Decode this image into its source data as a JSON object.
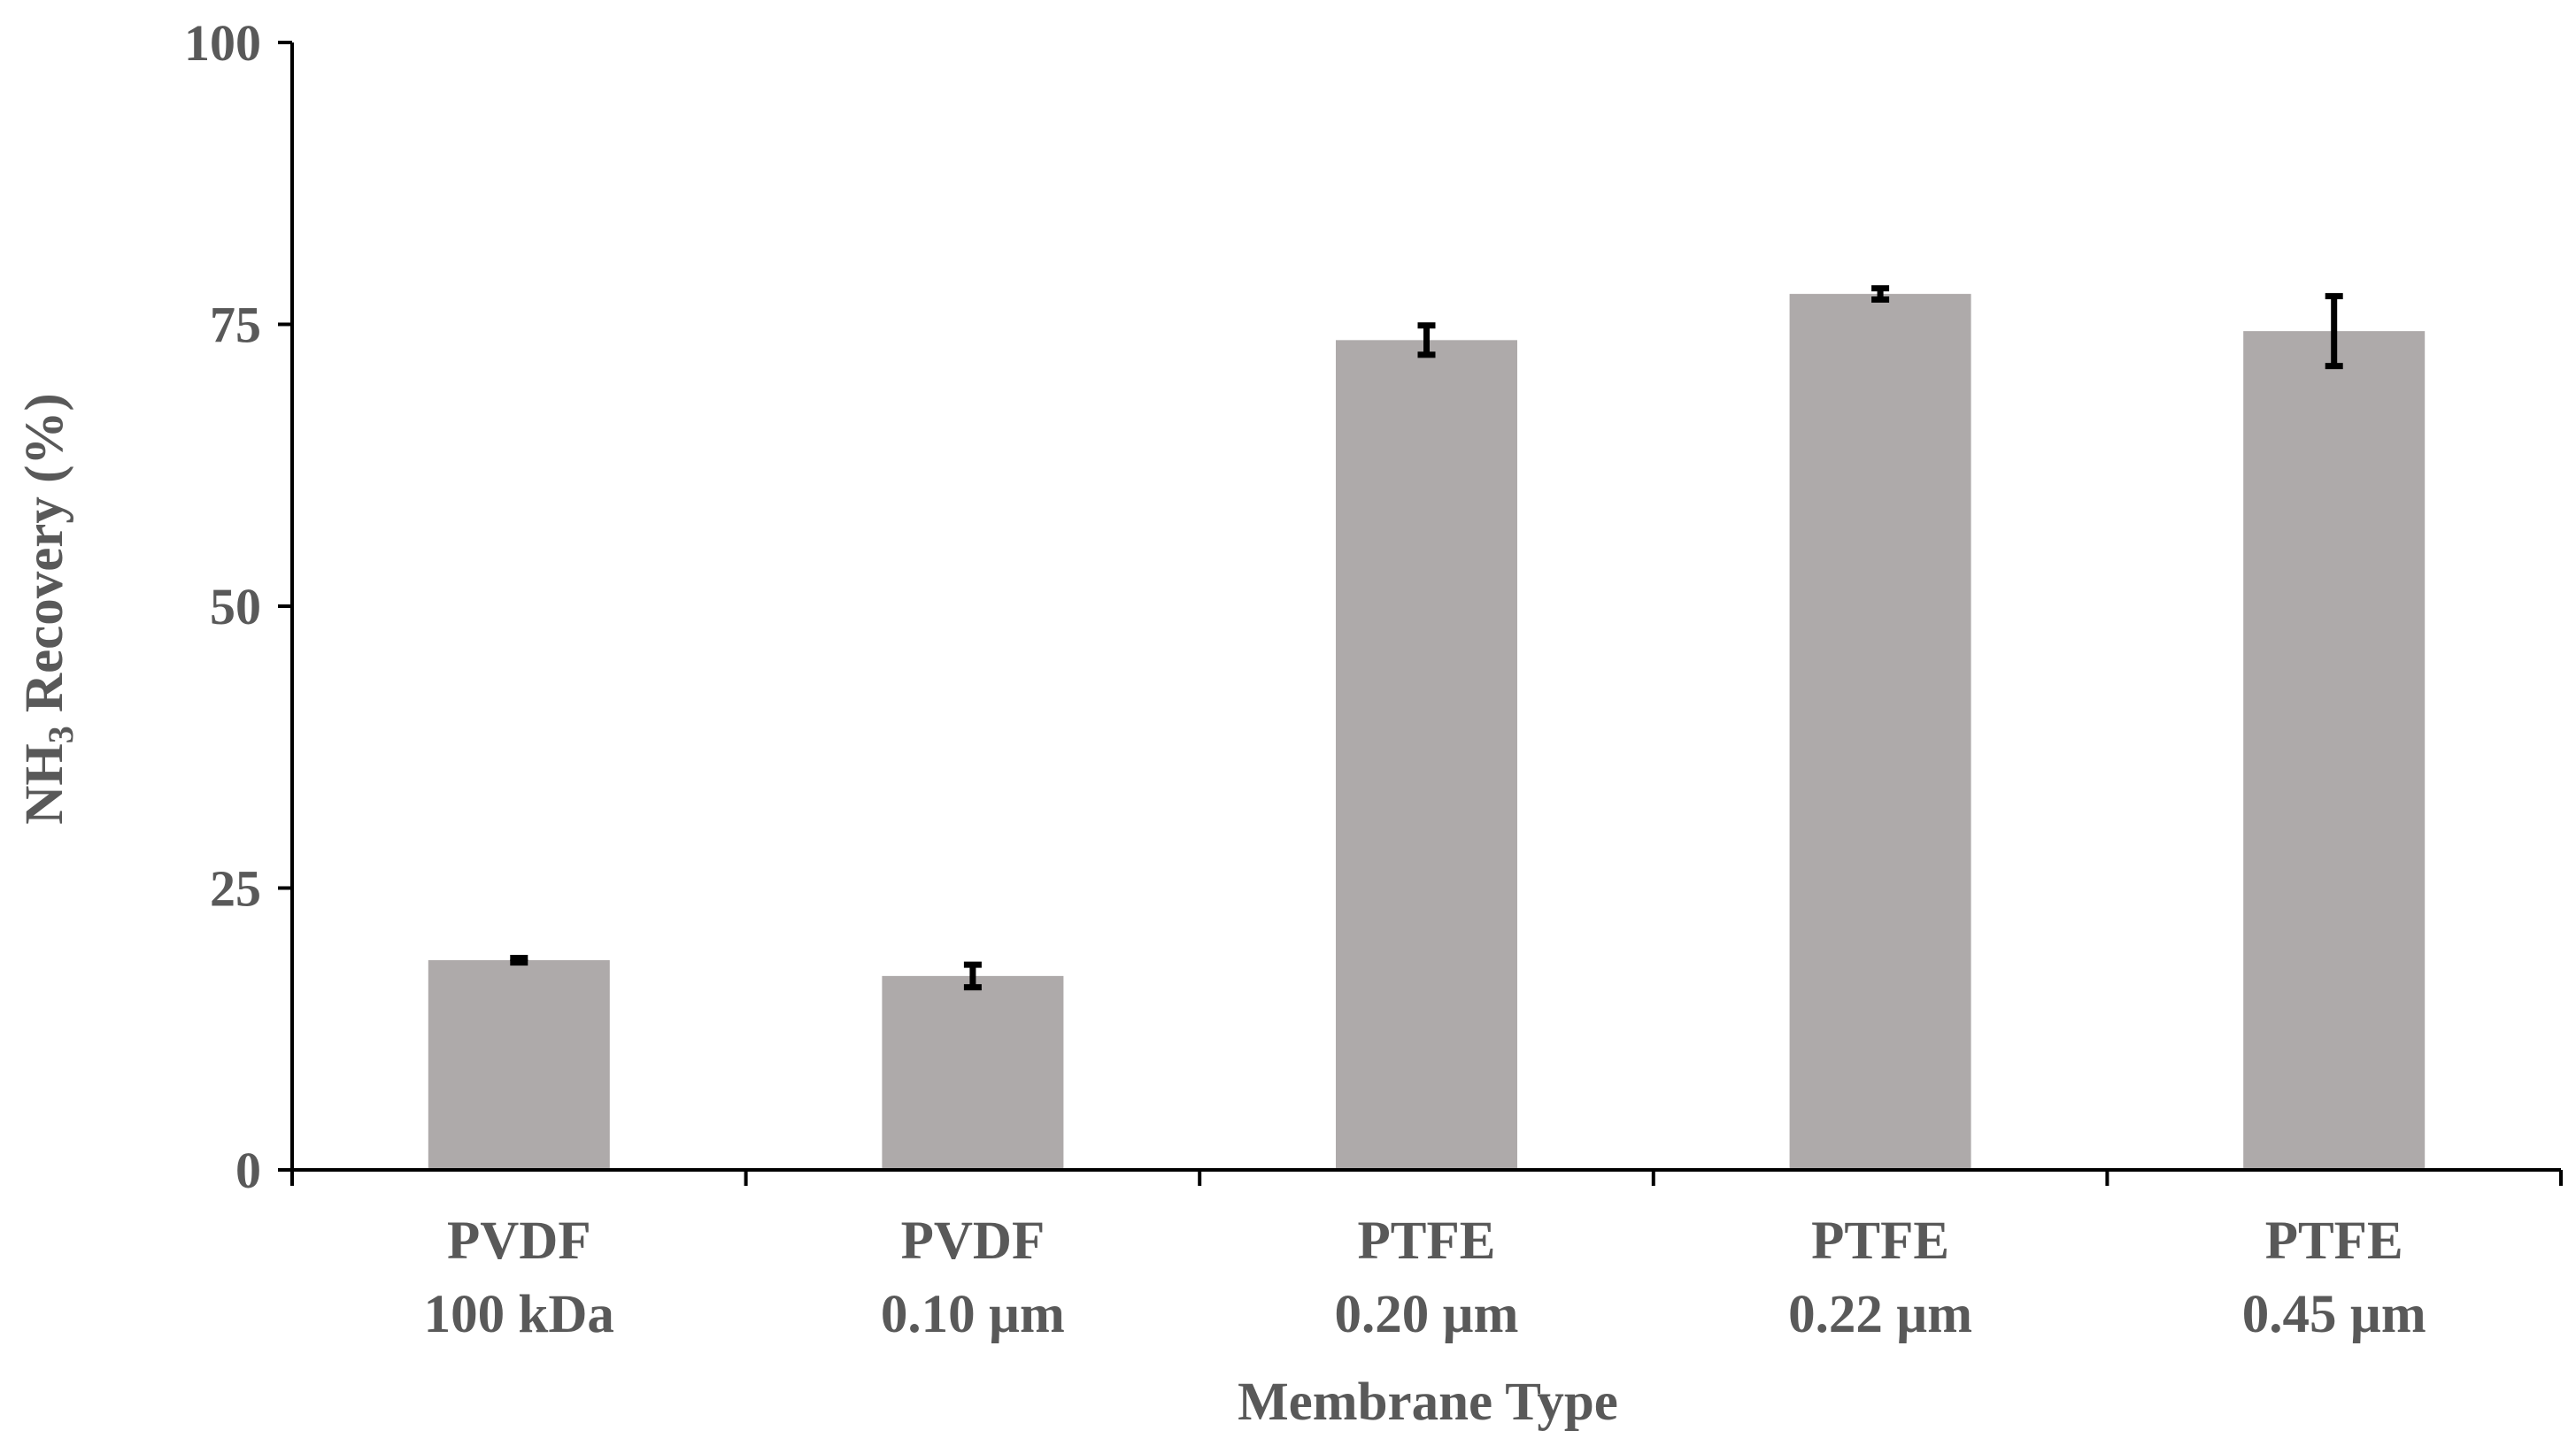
{
  "chart_data": {
    "type": "bar",
    "title": "",
    "xlabel": "Membrane Type",
    "ylabel_main": "NH",
    "ylabel_sub": "3",
    "ylabel_rest": " Recovery (%)",
    "ylim": [
      0,
      100
    ],
    "yticks": [
      0,
      25,
      50,
      75,
      100
    ],
    "categories": [
      {
        "line1": "PVDF",
        "line2": "100 kDa"
      },
      {
        "line1": "PVDF",
        "line2": "0.10 µm"
      },
      {
        "line1": "PTFE",
        "line2": "0.20 µm"
      },
      {
        "line1": "PTFE",
        "line2": "0.22 µm"
      },
      {
        "line1": "PTFE",
        "line2": "0.45 µm"
      }
    ],
    "values": [
      18.6,
      17.2,
      73.6,
      77.7,
      74.4
    ],
    "errors": [
      0.2,
      1.0,
      1.3,
      0.5,
      3.1
    ],
    "bar_color": "#aeaaaa",
    "error_color": "#000000",
    "axis_color": "#000000",
    "text_color": "#595959",
    "grid": false,
    "legend": "none"
  }
}
